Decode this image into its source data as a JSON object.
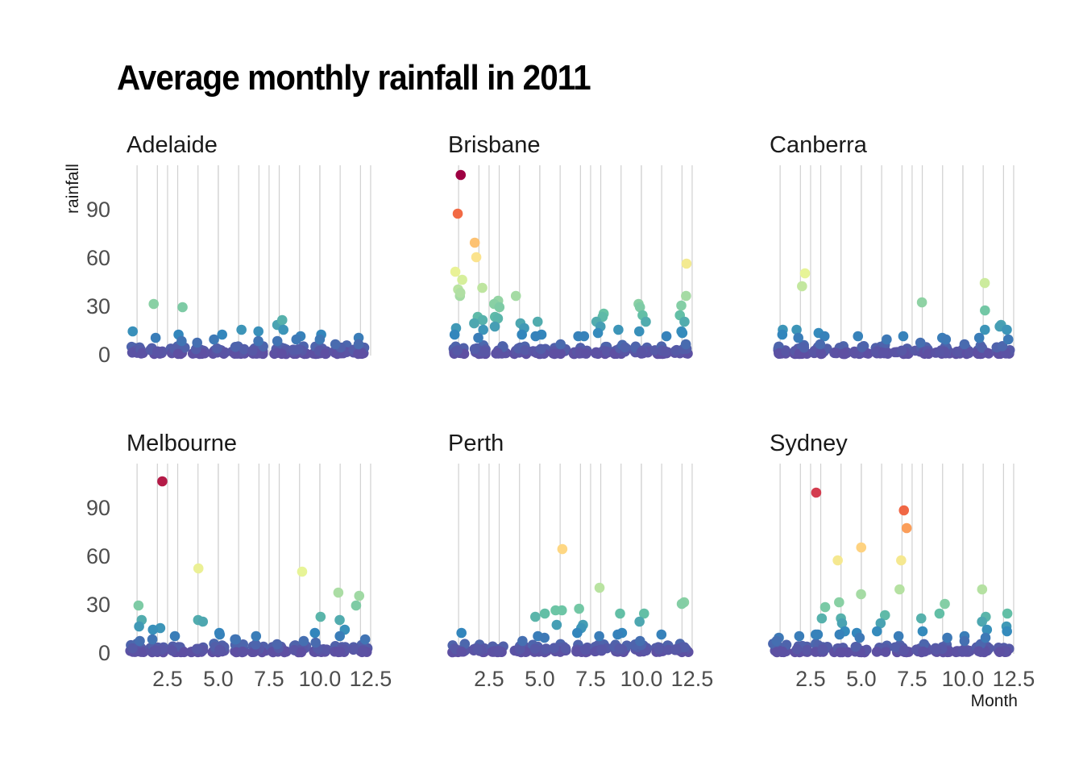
{
  "chart_data": {
    "type": "scatter",
    "title": "Average monthly rainfall in 2011",
    "xlabel": "Month",
    "ylabel": "rainfall",
    "xlim": [
      0.4,
      12.7
    ],
    "ylim": [
      -1,
      117
    ],
    "x_ticks": [
      "2.5",
      "5.0",
      "7.5",
      "10.0",
      "12.5"
    ],
    "y_ticks": [
      "0",
      "30",
      "60",
      "90"
    ],
    "x_gridlines": [
      1,
      2,
      3,
      4,
      5,
      6,
      7,
      8,
      9,
      10,
      11,
      12
    ],
    "grid": "vertical only",
    "color_scale": "Spectral (reversed): low rainfall = purple, high rainfall = dark red",
    "color_stops": [
      "#5E4FA2",
      "#3288BD",
      "#66C2A5",
      "#ABDDA4",
      "#E6F598",
      "#FEE08B",
      "#FDAE61",
      "#F46D43",
      "#D53E4F",
      "#9E0142"
    ],
    "facets": [
      {
        "name": "Adelaide",
        "points": [
          [
            1,
            14
          ],
          [
            2,
            31
          ],
          [
            2,
            10
          ],
          [
            3,
            29
          ],
          [
            3,
            12
          ],
          [
            3,
            8
          ],
          [
            4,
            7
          ],
          [
            5,
            12
          ],
          [
            5,
            9
          ],
          [
            6,
            15
          ],
          [
            7,
            14
          ],
          [
            7,
            8
          ],
          [
            8,
            18
          ],
          [
            8,
            21
          ],
          [
            8,
            15
          ],
          [
            8,
            8
          ],
          [
            9,
            11
          ],
          [
            9,
            9
          ],
          [
            10,
            12
          ],
          [
            10,
            9
          ],
          [
            11,
            4
          ],
          [
            11,
            6
          ],
          [
            12,
            10
          ],
          [
            12,
            6
          ]
        ]
      },
      {
        "name": "Brisbane",
        "points": [
          [
            1,
            111
          ],
          [
            1,
            87
          ],
          [
            1,
            51
          ],
          [
            1,
            46
          ],
          [
            1,
            40
          ],
          [
            1,
            36
          ],
          [
            1,
            38
          ],
          [
            1,
            16
          ],
          [
            1,
            12
          ],
          [
            2,
            69
          ],
          [
            2,
            60
          ],
          [
            2,
            41
          ],
          [
            2,
            23
          ],
          [
            2,
            21
          ],
          [
            2,
            19
          ],
          [
            2,
            15
          ],
          [
            2,
            10
          ],
          [
            3,
            33
          ],
          [
            3,
            31
          ],
          [
            3,
            29
          ],
          [
            3,
            23
          ],
          [
            3,
            22
          ],
          [
            3,
            17
          ],
          [
            4,
            36
          ],
          [
            4,
            19
          ],
          [
            4,
            16
          ],
          [
            4,
            12
          ],
          [
            5,
            20
          ],
          [
            5,
            12
          ],
          [
            5,
            11
          ],
          [
            6,
            6
          ],
          [
            7,
            11
          ],
          [
            7,
            11
          ],
          [
            8,
            25
          ],
          [
            8,
            23
          ],
          [
            8,
            20
          ],
          [
            8,
            17
          ],
          [
            8,
            13
          ],
          [
            9,
            15
          ],
          [
            10,
            31
          ],
          [
            10,
            29
          ],
          [
            10,
            24
          ],
          [
            10,
            20
          ],
          [
            10,
            14
          ],
          [
            11,
            11
          ],
          [
            12,
            56
          ],
          [
            12,
            36
          ],
          [
            12,
            30
          ],
          [
            12,
            24
          ],
          [
            12,
            20
          ],
          [
            12,
            14
          ],
          [
            12,
            13
          ],
          [
            12,
            6
          ]
        ]
      },
      {
        "name": "Canberra",
        "points": [
          [
            1,
            15
          ],
          [
            1,
            12
          ],
          [
            2,
            50
          ],
          [
            2,
            42
          ],
          [
            2,
            15
          ],
          [
            2,
            10
          ],
          [
            3,
            13
          ],
          [
            3,
            11
          ],
          [
            3,
            6
          ],
          [
            5,
            11
          ],
          [
            6,
            9
          ],
          [
            7,
            11
          ],
          [
            8,
            32
          ],
          [
            8,
            7
          ],
          [
            9,
            10
          ],
          [
            9,
            9
          ],
          [
            10,
            6
          ],
          [
            11,
            44
          ],
          [
            11,
            27
          ],
          [
            11,
            15
          ],
          [
            11,
            10
          ],
          [
            12,
            18
          ],
          [
            12,
            17
          ],
          [
            12,
            15
          ],
          [
            12,
            9
          ]
        ]
      },
      {
        "name": "Melbourne",
        "points": [
          [
            1,
            29
          ],
          [
            1,
            20
          ],
          [
            1,
            16
          ],
          [
            1,
            7
          ],
          [
            2,
            106
          ],
          [
            2,
            15
          ],
          [
            2,
            14
          ],
          [
            2,
            8
          ],
          [
            3,
            10
          ],
          [
            4,
            52
          ],
          [
            4,
            20
          ],
          [
            4,
            19
          ],
          [
            5,
            12
          ],
          [
            5,
            11
          ],
          [
            6,
            8
          ],
          [
            6,
            8
          ],
          [
            7,
            10
          ],
          [
            8,
            5
          ],
          [
            9,
            50
          ],
          [
            9,
            7
          ],
          [
            10,
            22
          ],
          [
            10,
            12
          ],
          [
            10,
            6
          ],
          [
            11,
            37
          ],
          [
            11,
            20
          ],
          [
            11,
            14
          ],
          [
            11,
            10
          ],
          [
            12,
            35
          ],
          [
            12,
            29
          ],
          [
            12,
            8
          ]
        ]
      },
      {
        "name": "Perth",
        "points": [
          [
            1,
            12
          ],
          [
            4,
            7
          ],
          [
            5,
            24
          ],
          [
            5,
            22
          ],
          [
            5,
            10
          ],
          [
            5,
            9
          ],
          [
            6,
            64
          ],
          [
            6,
            26
          ],
          [
            6,
            26
          ],
          [
            6,
            17
          ],
          [
            7,
            27
          ],
          [
            7,
            17
          ],
          [
            7,
            15
          ],
          [
            7,
            12
          ],
          [
            8,
            40
          ],
          [
            8,
            10
          ],
          [
            9,
            24
          ],
          [
            9,
            12
          ],
          [
            9,
            11
          ],
          [
            10,
            24
          ],
          [
            10,
            19
          ],
          [
            10,
            7
          ],
          [
            11,
            11
          ],
          [
            12,
            31
          ],
          [
            12,
            30
          ]
        ]
      },
      {
        "name": "Sydney",
        "points": [
          [
            1,
            9
          ],
          [
            1,
            7
          ],
          [
            2,
            10
          ],
          [
            3,
            99
          ],
          [
            3,
            28
          ],
          [
            3,
            21
          ],
          [
            3,
            11
          ],
          [
            3,
            11
          ],
          [
            4,
            57
          ],
          [
            4,
            31
          ],
          [
            4,
            21
          ],
          [
            4,
            18
          ],
          [
            4,
            13
          ],
          [
            4,
            11
          ],
          [
            5,
            65
          ],
          [
            5,
            36
          ],
          [
            5,
            12
          ],
          [
            5,
            9
          ],
          [
            6,
            23
          ],
          [
            6,
            18
          ],
          [
            6,
            13
          ],
          [
            7,
            88
          ],
          [
            7,
            77
          ],
          [
            7,
            57
          ],
          [
            7,
            39
          ],
          [
            7,
            10
          ],
          [
            8,
            21
          ],
          [
            8,
            13
          ],
          [
            9,
            30
          ],
          [
            9,
            24
          ],
          [
            9,
            9
          ],
          [
            10,
            10
          ],
          [
            10,
            7
          ],
          [
            11,
            39
          ],
          [
            11,
            22
          ],
          [
            11,
            19
          ],
          [
            11,
            14
          ],
          [
            11,
            9
          ],
          [
            12,
            24
          ],
          [
            12,
            16
          ],
          [
            12,
            13
          ]
        ]
      }
    ]
  }
}
